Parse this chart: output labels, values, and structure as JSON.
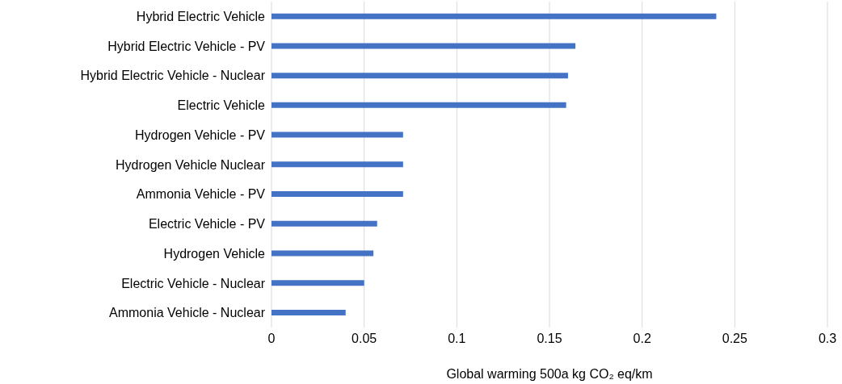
{
  "chart_data": {
    "type": "bar",
    "orientation": "horizontal",
    "xlabel": "Global warming 500a kg CO₂ eq/km",
    "categories": [
      "Hybrid Electric Vehicle",
      "Hybrid Electric Vehicle - PV",
      "Hybrid Electric Vehicle - Nuclear",
      "Electric Vehicle",
      "Hydrogen Vehicle - PV",
      "Hydrogen Vehicle Nuclear",
      "Ammonia Vehicle - PV",
      "Electric Vehicle - PV",
      "Hydrogen Vehicle",
      "Electric Vehicle - Nuclear",
      "Ammonia Vehicle - Nuclear"
    ],
    "values": [
      0.24,
      0.164,
      0.16,
      0.159,
      0.071,
      0.071,
      0.071,
      0.057,
      0.055,
      0.05,
      0.04
    ],
    "color": "#4472c4",
    "xlim": [
      0,
      0.3
    ],
    "xticks": [
      0,
      0.05,
      0.1,
      0.15,
      0.2,
      0.25,
      0.3
    ],
    "grid": "x"
  }
}
